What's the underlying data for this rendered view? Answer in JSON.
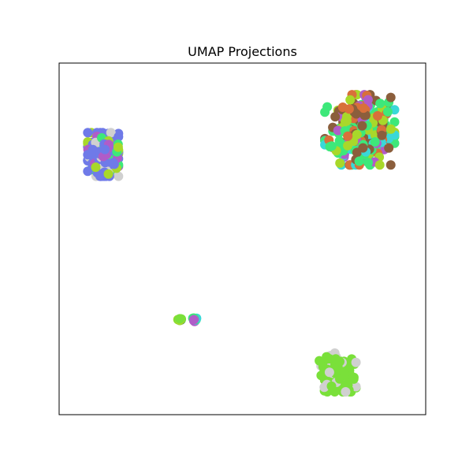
{
  "chart_data": {
    "type": "scatter",
    "title": "UMAP Projections",
    "xlabel": "",
    "ylabel": "",
    "axes_ticks": "none",
    "grid": false,
    "legend": "none",
    "xlim": [
      0,
      10
    ],
    "ylim": [
      0,
      10
    ],
    "colors": {
      "blue": "#6f7ae8",
      "mint": "#3de87a",
      "lime": "#7ae03a",
      "olive_lime": "#a8d82a",
      "brown": "#8b5e3c",
      "purple": "#b05cc8",
      "cyan": "#3ad8d8",
      "orange": "#d8703a",
      "gray": "#d0d0d0",
      "dark_green": "#3a7a50"
    },
    "clusters": [
      {
        "id": "left-cluster",
        "center": [
          1.2,
          7.4
        ],
        "spread": [
          0.42,
          0.62
        ],
        "points": 260,
        "colors": [
          "blue",
          "blue",
          "blue",
          "blue",
          "olive_lime",
          "mint",
          "purple",
          "gray"
        ]
      },
      {
        "id": "top-right-cluster",
        "center": [
          8.2,
          8.1
        ],
        "spread": [
          0.95,
          1.0
        ],
        "points": 300,
        "colors": [
          "mint",
          "mint",
          "mint",
          "brown",
          "brown",
          "olive_lime",
          "purple",
          "cyan",
          "orange"
        ]
      },
      {
        "id": "bottom-right-cluster",
        "center": [
          7.6,
          1.2
        ],
        "spread": [
          0.5,
          0.55
        ],
        "points": 120,
        "colors": [
          "lime",
          "lime",
          "lime",
          "lime",
          "gray"
        ]
      },
      {
        "id": "small-cluster-a",
        "center": [
          3.3,
          2.7
        ],
        "spread": [
          0.07,
          0.04
        ],
        "points": 10,
        "colors": [
          "lime",
          "dark_green",
          "olive_lime"
        ]
      },
      {
        "id": "small-cluster-b",
        "center": [
          3.7,
          2.7
        ],
        "spread": [
          0.07,
          0.05
        ],
        "points": 12,
        "colors": [
          "purple",
          "mint",
          "cyan"
        ]
      }
    ]
  }
}
